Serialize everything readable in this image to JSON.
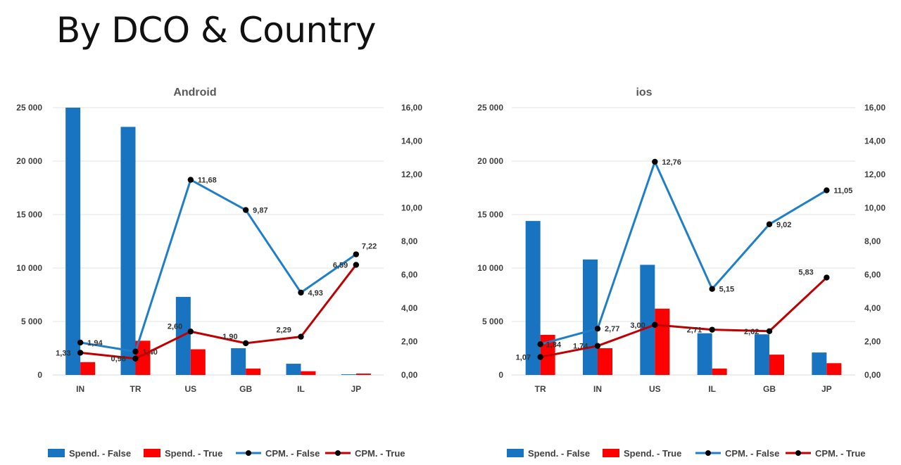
{
  "slide": {
    "title": "By DCO & Country"
  },
  "colors": {
    "spend_false": "#1874c1",
    "spend_true": "#ff0000",
    "cpm_false": "#1f7ec8",
    "cpm_true": "#c00000",
    "marker": "#000000"
  },
  "chart_data": [
    {
      "type": "bar",
      "title": "Android",
      "categories": [
        "IN",
        "TR",
        "US",
        "GB",
        "IL",
        "JP"
      ],
      "y_left": {
        "min": 0,
        "max": 25000,
        "ticks": [
          "0",
          "5 000",
          "10 000",
          "15 000",
          "20 000",
          "25 000"
        ]
      },
      "y_right": {
        "min": 0,
        "max": 16,
        "ticks": [
          "0,00",
          "2,00",
          "4,00",
          "6,00",
          "8,00",
          "10,00",
          "12,00",
          "14,00",
          "16,00"
        ]
      },
      "grid": true,
      "legend_position": "bottom",
      "series": [
        {
          "name": "Spend. - False",
          "kind": "bar",
          "axis": "left",
          "values": [
            25000,
            23200,
            7300,
            2500,
            1050,
            60
          ]
        },
        {
          "name": "Spend. - True",
          "kind": "bar",
          "axis": "left",
          "values": [
            1200,
            3200,
            2400,
            600,
            350,
            130
          ]
        },
        {
          "name": "CPM. - False",
          "kind": "line",
          "axis": "right",
          "values": [
            1.94,
            1.4,
            11.68,
            9.87,
            4.93,
            7.22
          ],
          "labels": [
            "1,94",
            "1,40",
            "11,68",
            "9,87",
            "4,93",
            "7,22"
          ]
        },
        {
          "name": "CPM. - True",
          "kind": "line",
          "axis": "right",
          "values": [
            1.33,
            0.98,
            2.6,
            1.9,
            2.29,
            6.59
          ],
          "labels": [
            "1,33",
            "0,98",
            "2,60",
            "1,90",
            "2,29",
            "6,59"
          ]
        }
      ]
    },
    {
      "type": "bar",
      "title": "ios",
      "categories": [
        "TR",
        "IN",
        "US",
        "IL",
        "GB",
        "JP"
      ],
      "y_left": {
        "min": 0,
        "max": 25000,
        "ticks": [
          "0",
          "5 000",
          "10 000",
          "15 000",
          "20 000",
          "25 000"
        ]
      },
      "y_right": {
        "min": 0,
        "max": 16,
        "ticks": [
          "0,00",
          "2,00",
          "4,00",
          "6,00",
          "8,00",
          "10,00",
          "12,00",
          "14,00",
          "16,00"
        ]
      },
      "grid": true,
      "legend_position": "bottom",
      "series": [
        {
          "name": "Spend. - False",
          "kind": "bar",
          "axis": "left",
          "values": [
            14400,
            10800,
            10300,
            3900,
            3800,
            2100
          ]
        },
        {
          "name": "Spend. - True",
          "kind": "bar",
          "axis": "left",
          "values": [
            3750,
            2500,
            6200,
            600,
            1900,
            1100
          ]
        },
        {
          "name": "CPM. - False",
          "kind": "line",
          "axis": "right",
          "values": [
            1.84,
            2.77,
            12.76,
            5.15,
            9.02,
            11.05
          ],
          "labels": [
            "1,84",
            "2,77",
            "12,76",
            "5,15",
            "9,02",
            "11,05"
          ]
        },
        {
          "name": "CPM. - True",
          "kind": "line",
          "axis": "right",
          "values": [
            1.07,
            1.74,
            3.0,
            2.71,
            2.62,
            5.83
          ],
          "labels": [
            "1,07",
            "1,74",
            "3,00",
            "2,71",
            "2,62",
            "5,83"
          ]
        }
      ]
    }
  ]
}
